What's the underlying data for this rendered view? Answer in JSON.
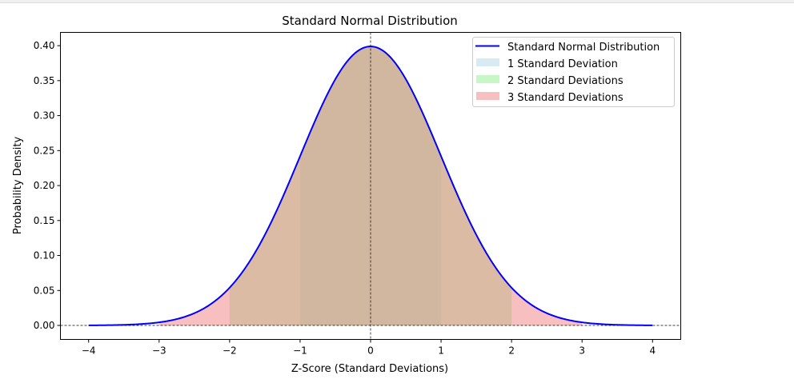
{
  "chart_data": {
    "type": "area",
    "title": "Standard Normal Distribution",
    "xlabel": "Z-Score (Standard Deviations)",
    "ylabel": "Probability Density",
    "xlim": [
      -4.4,
      4.4
    ],
    "ylim": [
      -0.02,
      0.419
    ],
    "xticks": [
      "−4",
      "−3",
      "−2",
      "−1",
      "0",
      "1",
      "2",
      "3",
      "4"
    ],
    "xtick_values": [
      -4,
      -3,
      -2,
      -1,
      0,
      1,
      2,
      3,
      4
    ],
    "yticks": [
      "0.00",
      "0.05",
      "0.10",
      "0.15",
      "0.20",
      "0.25",
      "0.30",
      "0.35",
      "0.40"
    ],
    "ytick_values": [
      0,
      0.05,
      0.1,
      0.15,
      0.2,
      0.25,
      0.3,
      0.35,
      0.4
    ],
    "curve": {
      "name": "Standard Normal Distribution",
      "function": "pdf N(0,1)",
      "x_range": [
        -4,
        4
      ],
      "color": "#0000ff"
    },
    "bands": [
      {
        "name": "1 Standard Deviation",
        "range": [
          -1,
          1
        ],
        "color": "#add8e6",
        "alpha": 0.5
      },
      {
        "name": "2 Standard Deviations",
        "range": [
          -2,
          2
        ],
        "color": "#90ee90",
        "alpha": 0.5
      },
      {
        "name": "3 Standard Deviations",
        "range": [
          -3,
          3
        ],
        "color": "#f08080",
        "alpha": 0.5
      }
    ],
    "reference_lines": [
      {
        "axis": "x",
        "value": 0,
        "style": "dashed"
      },
      {
        "axis": "y",
        "value": 0,
        "style": "dashed"
      }
    ],
    "grid": false,
    "legend": "top-right"
  }
}
